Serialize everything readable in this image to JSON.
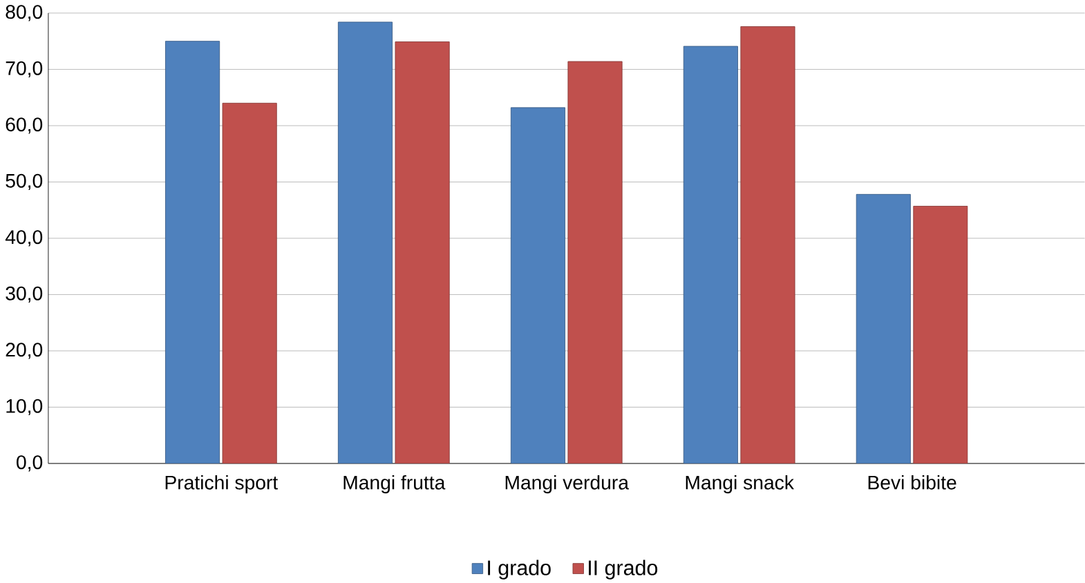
{
  "chart_data": {
    "type": "bar",
    "categories": [
      "Pratichi sport",
      "Mangi frutta",
      "Mangi verdura",
      "Mangi snack",
      "Bevi bibite"
    ],
    "series": [
      {
        "name": "I grado",
        "color": "#4f81bd",
        "values": [
          75,
          78.4,
          63.2,
          74.1,
          47.8
        ]
      },
      {
        "name": "II grado",
        "color": "#c0504d",
        "values": [
          64,
          74.9,
          71.4,
          77.6,
          45.7
        ]
      }
    ],
    "ylim": [
      0,
      80
    ],
    "yticks": [
      {
        "value": 0,
        "label": "0,0"
      },
      {
        "value": 10,
        "label": "10,0"
      },
      {
        "value": 20,
        "label": "20,0"
      },
      {
        "value": 30,
        "label": "30,0"
      },
      {
        "value": 40,
        "label": "40,0"
      },
      {
        "value": 50,
        "label": "50,0"
      },
      {
        "value": 60,
        "label": "60,0"
      },
      {
        "value": 70,
        "label": "70,0"
      },
      {
        "value": 80,
        "label": "80,0"
      }
    ],
    "grid": "y",
    "legend": "bottom"
  }
}
